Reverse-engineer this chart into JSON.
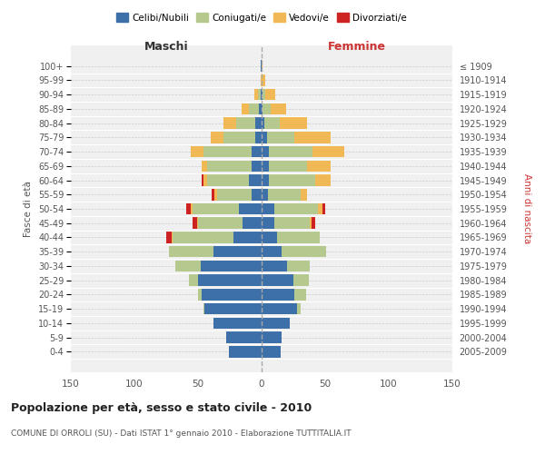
{
  "age_groups": [
    "100+",
    "95-99",
    "90-94",
    "85-89",
    "80-84",
    "75-79",
    "70-74",
    "65-69",
    "60-64",
    "55-59",
    "50-54",
    "45-49",
    "40-44",
    "35-39",
    "30-34",
    "25-29",
    "20-24",
    "15-19",
    "10-14",
    "5-9",
    "0-4"
  ],
  "birth_years": [
    "≤ 1909",
    "1910-1914",
    "1915-1919",
    "1920-1924",
    "1925-1929",
    "1930-1934",
    "1935-1939",
    "1940-1944",
    "1945-1949",
    "1950-1954",
    "1955-1959",
    "1960-1964",
    "1965-1969",
    "1970-1974",
    "1975-1979",
    "1980-1984",
    "1985-1989",
    "1990-1994",
    "1995-1999",
    "2000-2004",
    "2005-2009"
  ],
  "males": {
    "celibi": [
      1,
      0,
      1,
      2,
      5,
      5,
      8,
      8,
      10,
      8,
      18,
      15,
      22,
      38,
      48,
      50,
      47,
      45,
      38,
      28,
      26
    ],
    "coniugati": [
      0,
      0,
      2,
      8,
      15,
      25,
      38,
      35,
      33,
      27,
      36,
      35,
      48,
      35,
      20,
      7,
      3,
      1,
      0,
      0,
      0
    ],
    "vedovi": [
      0,
      1,
      3,
      6,
      10,
      10,
      10,
      4,
      3,
      2,
      2,
      1,
      1,
      0,
      0,
      0,
      0,
      0,
      0,
      0,
      0
    ],
    "divorziati": [
      0,
      0,
      0,
      0,
      0,
      0,
      0,
      0,
      1,
      2,
      3,
      3,
      4,
      0,
      0,
      0,
      0,
      0,
      0,
      0,
      0
    ]
  },
  "females": {
    "nubili": [
      0,
      0,
      1,
      1,
      2,
      4,
      6,
      6,
      6,
      5,
      10,
      10,
      12,
      16,
      20,
      25,
      26,
      28,
      22,
      16,
      15
    ],
    "coniugate": [
      0,
      0,
      2,
      6,
      12,
      22,
      34,
      30,
      36,
      26,
      34,
      28,
      34,
      35,
      18,
      12,
      9,
      3,
      0,
      0,
      0
    ],
    "vedove": [
      1,
      3,
      8,
      12,
      22,
      28,
      25,
      18,
      12,
      5,
      4,
      1,
      0,
      0,
      0,
      0,
      0,
      0,
      0,
      0,
      0
    ],
    "divorziate": [
      0,
      0,
      0,
      0,
      0,
      0,
      0,
      0,
      0,
      0,
      2,
      3,
      0,
      0,
      0,
      0,
      0,
      0,
      0,
      0,
      0
    ]
  },
  "colors": {
    "celibi": "#3d6fa8",
    "coniugati": "#b5c98e",
    "vedovi": "#f0b955",
    "divorziati": "#cc2222"
  },
  "xlim": 150,
  "title": "Popolazione per età, sesso e stato civile - 2010",
  "subtitle": "COMUNE DI ORROLI (SU) - Dati ISTAT 1° gennaio 2010 - Elaborazione TUTTITALIA.IT",
  "xlabel_left": "Maschi",
  "xlabel_right": "Femmine",
  "ylabel_left": "Fasce di età",
  "ylabel_right": "Anni di nascita",
  "legend_labels": [
    "Celibi/Nubili",
    "Coniugati/e",
    "Vedovi/e",
    "Divorziati/e"
  ],
  "bg_color": "#ffffff",
  "plot_bg_color": "#f0f0f0",
  "grid_color": "#cccccc"
}
